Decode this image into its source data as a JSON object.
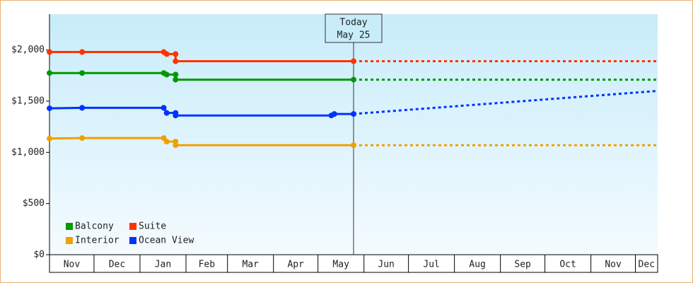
{
  "chart_data": {
    "type": "line",
    "annotation": {
      "x": 205,
      "lines": [
        "Today",
        "May 25"
      ]
    },
    "xlim": [
      0,
      410
    ],
    "xticks": [
      {
        "value": 0,
        "label": "Nov"
      },
      {
        "value": 30,
        "label": "Dec"
      },
      {
        "value": 61,
        "label": "Jan"
      },
      {
        "value": 92,
        "label": "Feb"
      },
      {
        "value": 120,
        "label": "Mar"
      },
      {
        "value": 151,
        "label": "Apr"
      },
      {
        "value": 181,
        "label": "May"
      },
      {
        "value": 212,
        "label": "Jun"
      },
      {
        "value": 242,
        "label": "Jul"
      },
      {
        "value": 273,
        "label": "Aug"
      },
      {
        "value": 304,
        "label": "Sep"
      },
      {
        "value": 334,
        "label": "Oct"
      },
      {
        "value": 365,
        "label": "Nov"
      },
      {
        "value": 395,
        "label": "Dec"
      }
    ],
    "ylim": [
      0,
      2350
    ],
    "yticks": [
      {
        "value": 0,
        "label": "$0"
      },
      {
        "value": 500,
        "label": "$500"
      },
      {
        "value": 1000,
        "label": "$1,000"
      },
      {
        "value": 1500,
        "label": "$1,500"
      },
      {
        "value": 2000,
        "label": "$2,000"
      }
    ],
    "legend": "lower left",
    "series": [
      {
        "name": "Balcony",
        "color": "#009900",
        "x": [
          0,
          22,
          77,
          79,
          85,
          85,
          205
        ],
        "values": [
          1775,
          1775,
          1775,
          1760,
          1760,
          1710,
          1710
        ],
        "forecast_x": [
          205,
          410
        ],
        "forecast_values": [
          1710,
          1710
        ]
      },
      {
        "name": "Suite",
        "color": "#ff3300",
        "x": [
          0,
          22,
          77,
          79,
          85,
          85,
          205
        ],
        "values": [
          1980,
          1980,
          1980,
          1960,
          1960,
          1890,
          1890
        ],
        "forecast_x": [
          205,
          410
        ],
        "forecast_values": [
          1890,
          1890
        ]
      },
      {
        "name": "Interior",
        "color": "#f0a000",
        "x": [
          0,
          22,
          77,
          79,
          85,
          85,
          205
        ],
        "values": [
          1135,
          1140,
          1140,
          1105,
          1105,
          1070,
          1070
        ],
        "forecast_x": [
          205,
          410
        ],
        "forecast_values": [
          1070,
          1070
        ]
      },
      {
        "name": "Ocean View",
        "color": "#0033ff",
        "x": [
          0,
          22,
          77,
          79,
          85,
          85,
          190,
          192,
          205
        ],
        "values": [
          1430,
          1435,
          1435,
          1385,
          1385,
          1360,
          1360,
          1375,
          1375
        ],
        "forecast_x": [
          205,
          410
        ],
        "forecast_values": [
          1375,
          1600
        ]
      }
    ]
  }
}
